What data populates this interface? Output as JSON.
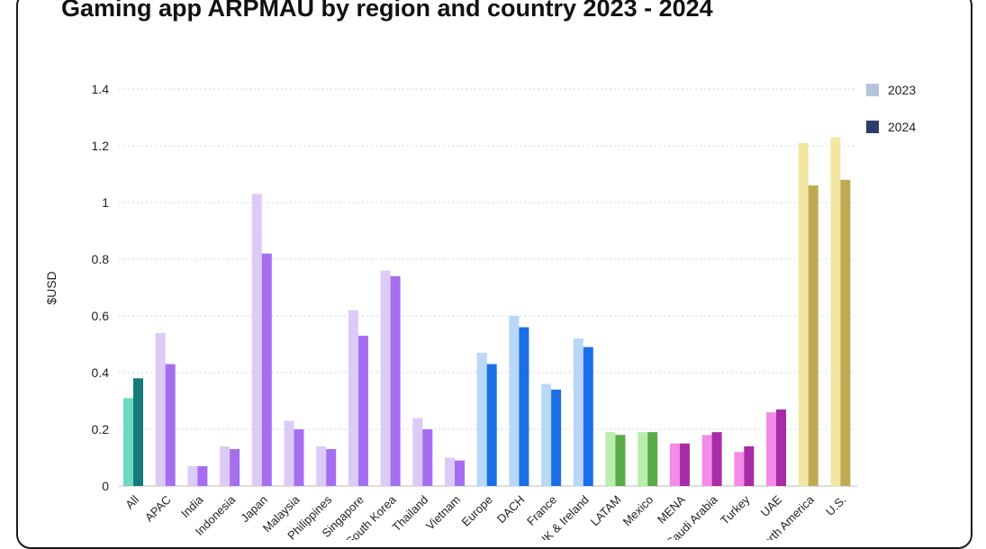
{
  "title": "Gaming app ARPMAU by region and country 2023 - 2024",
  "legend": [
    {
      "label": "2023",
      "color": "#b4c3de"
    },
    {
      "label": "2024",
      "color": "#2e3b6b"
    }
  ],
  "chart_data": {
    "type": "bar",
    "title": "Gaming app ARPMAU by region and country 2023 - 2024",
    "xlabel": "",
    "ylabel": "$USD",
    "ylim": [
      0,
      1.4
    ],
    "yticks": [
      0,
      0.2,
      0.4,
      0.6,
      0.8,
      1,
      1.2,
      1.4
    ],
    "ytick_labels": [
      "0",
      "0.2",
      "0.4",
      "0.6",
      "0.8",
      "1",
      "1.2",
      "1.4"
    ],
    "grid": true,
    "legend_position": "top-right",
    "categories": [
      "All",
      "APAC",
      "India",
      "Indonesia",
      "Japan",
      "Malaysia",
      "Philippines",
      "Singapore",
      "South Korea",
      "Thailand",
      "Vietnam",
      "Europe",
      "DACH",
      "France",
      "UK & Ireland",
      "LATAM",
      "Mexico",
      "MENA",
      "Saudi Arabia",
      "Turkey",
      "UAE",
      "North America",
      "U.S."
    ],
    "series": [
      {
        "name": "2023",
        "values": [
          0.31,
          0.54,
          0.07,
          0.14,
          1.03,
          0.23,
          0.14,
          0.62,
          0.76,
          0.24,
          0.1,
          0.47,
          0.6,
          0.36,
          0.52,
          0.19,
          0.19,
          0.15,
          0.18,
          0.12,
          0.26,
          1.21,
          1.23
        ]
      },
      {
        "name": "2024",
        "values": [
          0.38,
          0.43,
          0.07,
          0.13,
          0.82,
          0.2,
          0.13,
          0.53,
          0.74,
          0.2,
          0.09,
          0.43,
          0.56,
          0.34,
          0.49,
          0.18,
          0.19,
          0.15,
          0.19,
          0.14,
          0.27,
          1.06,
          1.08
        ]
      }
    ],
    "colors_2023": [
      "#6fd6c4",
      "#dccbf7",
      "#dccbf7",
      "#dccbf7",
      "#dccbf7",
      "#dccbf7",
      "#dccbf7",
      "#dccbf7",
      "#dccbf7",
      "#dccbf7",
      "#dccbf7",
      "#b9d7f7",
      "#b9d7f7",
      "#b9d7f7",
      "#b9d7f7",
      "#b9eeae",
      "#b9eeae",
      "#f48be6",
      "#f48be6",
      "#f48be6",
      "#f48be6",
      "#f3e6a3",
      "#f3e6a3"
    ],
    "colors_2024": [
      "#167a7a",
      "#a56ef0",
      "#a56ef0",
      "#a56ef0",
      "#a56ef0",
      "#a56ef0",
      "#a56ef0",
      "#a56ef0",
      "#a56ef0",
      "#a56ef0",
      "#a56ef0",
      "#1a6fe6",
      "#1a6fe6",
      "#1a6fe6",
      "#1a6fe6",
      "#5aab45",
      "#5aab45",
      "#a82ba8",
      "#a82ba8",
      "#a82ba8",
      "#a82ba8",
      "#bfaa52",
      "#bfaa52"
    ]
  }
}
